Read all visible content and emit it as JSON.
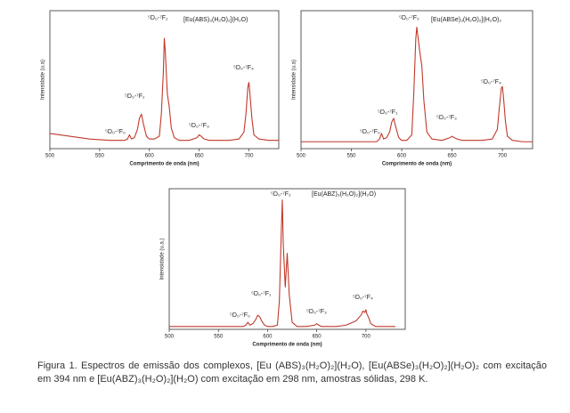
{
  "chart_data": [
    {
      "type": "line",
      "title": "[Eu(ABS)₃(H₂O)₂](H₂O)",
      "xlabel": "Comprimento de onda (nm)",
      "ylabel": "Intensidade (u.a)",
      "xlim": [
        500,
        730
      ],
      "ylim": [
        0,
        100
      ],
      "xticks": [
        500,
        550,
        600,
        650,
        700
      ],
      "annotations": [
        "⁵D₀-⁷F₀",
        "⁵D₀-⁷F₁",
        "⁵D₀-⁷F₂",
        "⁵D₀-⁷F₃",
        "⁵D₀-⁷F₄"
      ],
      "series": [
        {
          "color": "#c0392b",
          "x": [
            500,
            520,
            540,
            560,
            570,
            575,
            578,
            580,
            582,
            585,
            588,
            590,
            592,
            594,
            597,
            600,
            605,
            610,
            612,
            614,
            615,
            616,
            618,
            620,
            622,
            625,
            630,
            640,
            648,
            650,
            652,
            655,
            660,
            670,
            680,
            690,
            695,
            697,
            699,
            700,
            701,
            703,
            705,
            710,
            720,
            730
          ],
          "values": [
            11,
            9,
            7,
            6,
            6,
            6,
            7,
            10,
            7,
            8,
            14,
            22,
            25,
            18,
            9,
            7,
            7,
            9,
            25,
            55,
            80,
            70,
            40,
            30,
            15,
            8,
            6,
            6,
            8,
            10,
            9,
            7,
            6,
            6,
            6,
            7,
            12,
            25,
            45,
            48,
            40,
            22,
            10,
            7,
            6,
            6
          ]
        }
      ]
    },
    {
      "type": "line",
      "title": "[Eu(ABSe)₃(H₂O)₂](H₂O)₂",
      "xlabel": "Comprimento de onda (nm)",
      "ylabel": "Intensidade (u.a)",
      "xlim": [
        500,
        730
      ],
      "ylim": [
        0,
        100
      ],
      "xticks": [
        500,
        550,
        600,
        650,
        700
      ],
      "annotations": [
        "⁵D₀-⁷F₀",
        "⁵D₀-⁷F₁",
        "⁵D₀-⁷F₂",
        "⁵D₀-⁷F₃",
        "⁵D₀-⁷F₄"
      ],
      "series": [
        {
          "color": "#c0392b",
          "x": [
            500,
            520,
            540,
            560,
            570,
            575,
            578,
            580,
            582,
            585,
            588,
            590,
            592,
            594,
            597,
            600,
            605,
            610,
            612,
            614,
            615,
            616,
            618,
            620,
            622,
            625,
            630,
            640,
            648,
            650,
            652,
            655,
            660,
            670,
            680,
            690,
            695,
            697,
            699,
            700,
            701,
            703,
            705,
            710,
            720,
            730
          ],
          "values": [
            5,
            5,
            5,
            5,
            5,
            5,
            7,
            11,
            7,
            8,
            12,
            19,
            22,
            16,
            8,
            6,
            6,
            10,
            40,
            80,
            88,
            82,
            70,
            60,
            35,
            12,
            7,
            6,
            8,
            9,
            8,
            7,
            6,
            6,
            6,
            7,
            14,
            30,
            44,
            45,
            38,
            20,
            9,
            6,
            5,
            5
          ]
        }
      ]
    },
    {
      "type": "line",
      "title": "[Eu(ABZ)₃(H₂O)₂](H₂O)",
      "xlabel": "Comprimento de onda (nm)",
      "ylabel": "Intensidade (u.a.)",
      "xlim": [
        500,
        740
      ],
      "ylim": [
        0,
        100
      ],
      "xticks": [
        500,
        550,
        600,
        650,
        700
      ],
      "annotations": [
        "⁵D₀-⁷F₀",
        "⁵D₀-⁷F₁",
        "⁵D₀-⁷F₂",
        "⁵D₀-⁷F₃",
        "⁵D₀-⁷F₄"
      ],
      "series": [
        {
          "color": "#c0392b",
          "x": [
            500,
            520,
            540,
            560,
            570,
            575,
            578,
            580,
            582,
            585,
            588,
            590,
            592,
            594,
            597,
            600,
            605,
            610,
            612,
            614,
            615,
            616,
            618,
            620,
            622,
            625,
            630,
            640,
            648,
            650,
            652,
            655,
            660,
            670,
            680,
            690,
            695,
            697,
            699,
            700,
            701,
            703,
            705,
            710,
            720,
            730
          ],
          "values": [
            2,
            2,
            2,
            2,
            2,
            2,
            3,
            5,
            3,
            4,
            7,
            10,
            9,
            6,
            3,
            2,
            2,
            3,
            20,
            70,
            92,
            60,
            30,
            54,
            25,
            5,
            2,
            2,
            3,
            4,
            3,
            2,
            2,
            2,
            3,
            6,
            10,
            13,
            12,
            14,
            11,
            8,
            4,
            2,
            2,
            2
          ]
        }
      ]
    }
  ],
  "caption": "Figura 1. Espectros de emissão dos complexos, [Eu (ABS)₃(H₂O)₂](H₂O), [Eu(ABSe)₃(H₂O)₂](H₂O)₂ com excitação em 394 nm e [Eu(ABZ)₃(H₂O)₂](H₂O) com excitação em 298 nm, amostras sólidas, 298 K."
}
